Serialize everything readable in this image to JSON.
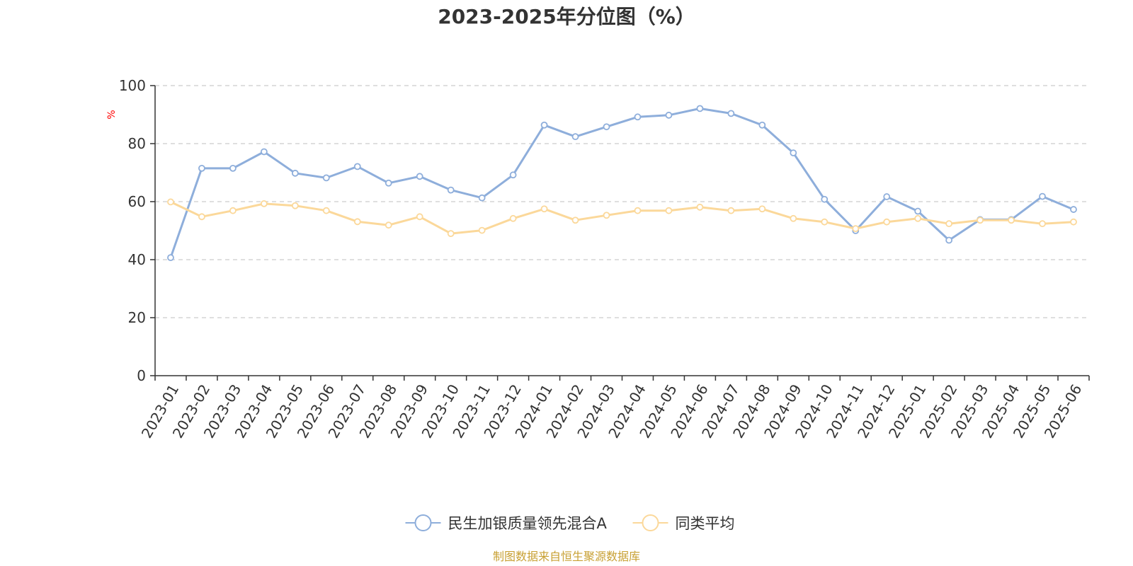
{
  "chart_data": {
    "type": "line",
    "title": "2023-2025年分位图（%）",
    "ylabel": "%",
    "xlabel": "",
    "ylim": [
      0,
      100
    ],
    "yticks": [
      0,
      20,
      40,
      60,
      80,
      100
    ],
    "grid": true,
    "legend_position": "bottom",
    "categories": [
      "2023-01",
      "2023-02",
      "2023-03",
      "2023-04",
      "2023-05",
      "2023-06",
      "2023-07",
      "2023-08",
      "2023-09",
      "2023-10",
      "2023-11",
      "2023-12",
      "2024-01",
      "2024-02",
      "2024-03",
      "2024-04",
      "2024-05",
      "2024-06",
      "2024-07",
      "2024-08",
      "2024-09",
      "2024-10",
      "2024-11",
      "2024-12",
      "2025-01",
      "2025-02",
      "2025-03",
      "2025-04",
      "2025-05",
      "2025-06"
    ],
    "series": [
      {
        "name": "民生加银质量领先混合A",
        "color": "#8eaedb",
        "values": [
          40.7,
          71.5,
          71.5,
          77.2,
          69.8,
          68.2,
          72.1,
          66.4,
          68.7,
          64.0,
          61.3,
          69.2,
          86.4,
          82.4,
          85.8,
          89.2,
          89.8,
          92.1,
          90.4,
          86.4,
          76.8,
          60.8,
          50.0,
          61.7,
          56.7,
          46.7,
          53.8,
          53.8,
          61.8,
          57.3
        ]
      },
      {
        "name": "同类平均",
        "color": "#fbd89a",
        "values": [
          59.9,
          54.8,
          56.9,
          59.3,
          58.6,
          56.9,
          53.1,
          51.9,
          54.8,
          49.0,
          50.1,
          54.2,
          57.5,
          53.6,
          55.3,
          56.9,
          56.9,
          58.1,
          56.9,
          57.5,
          54.2,
          53.0,
          50.7,
          53.0,
          54.2,
          52.4,
          53.6,
          53.6,
          52.4,
          53.0
        ]
      }
    ]
  },
  "colors": {
    "unit_label": "#ff0000",
    "source_label": "#c8a033",
    "grid": "#cccccc",
    "axis": "#333333"
  },
  "source_text": "制图数据来自恒生聚源数据库"
}
